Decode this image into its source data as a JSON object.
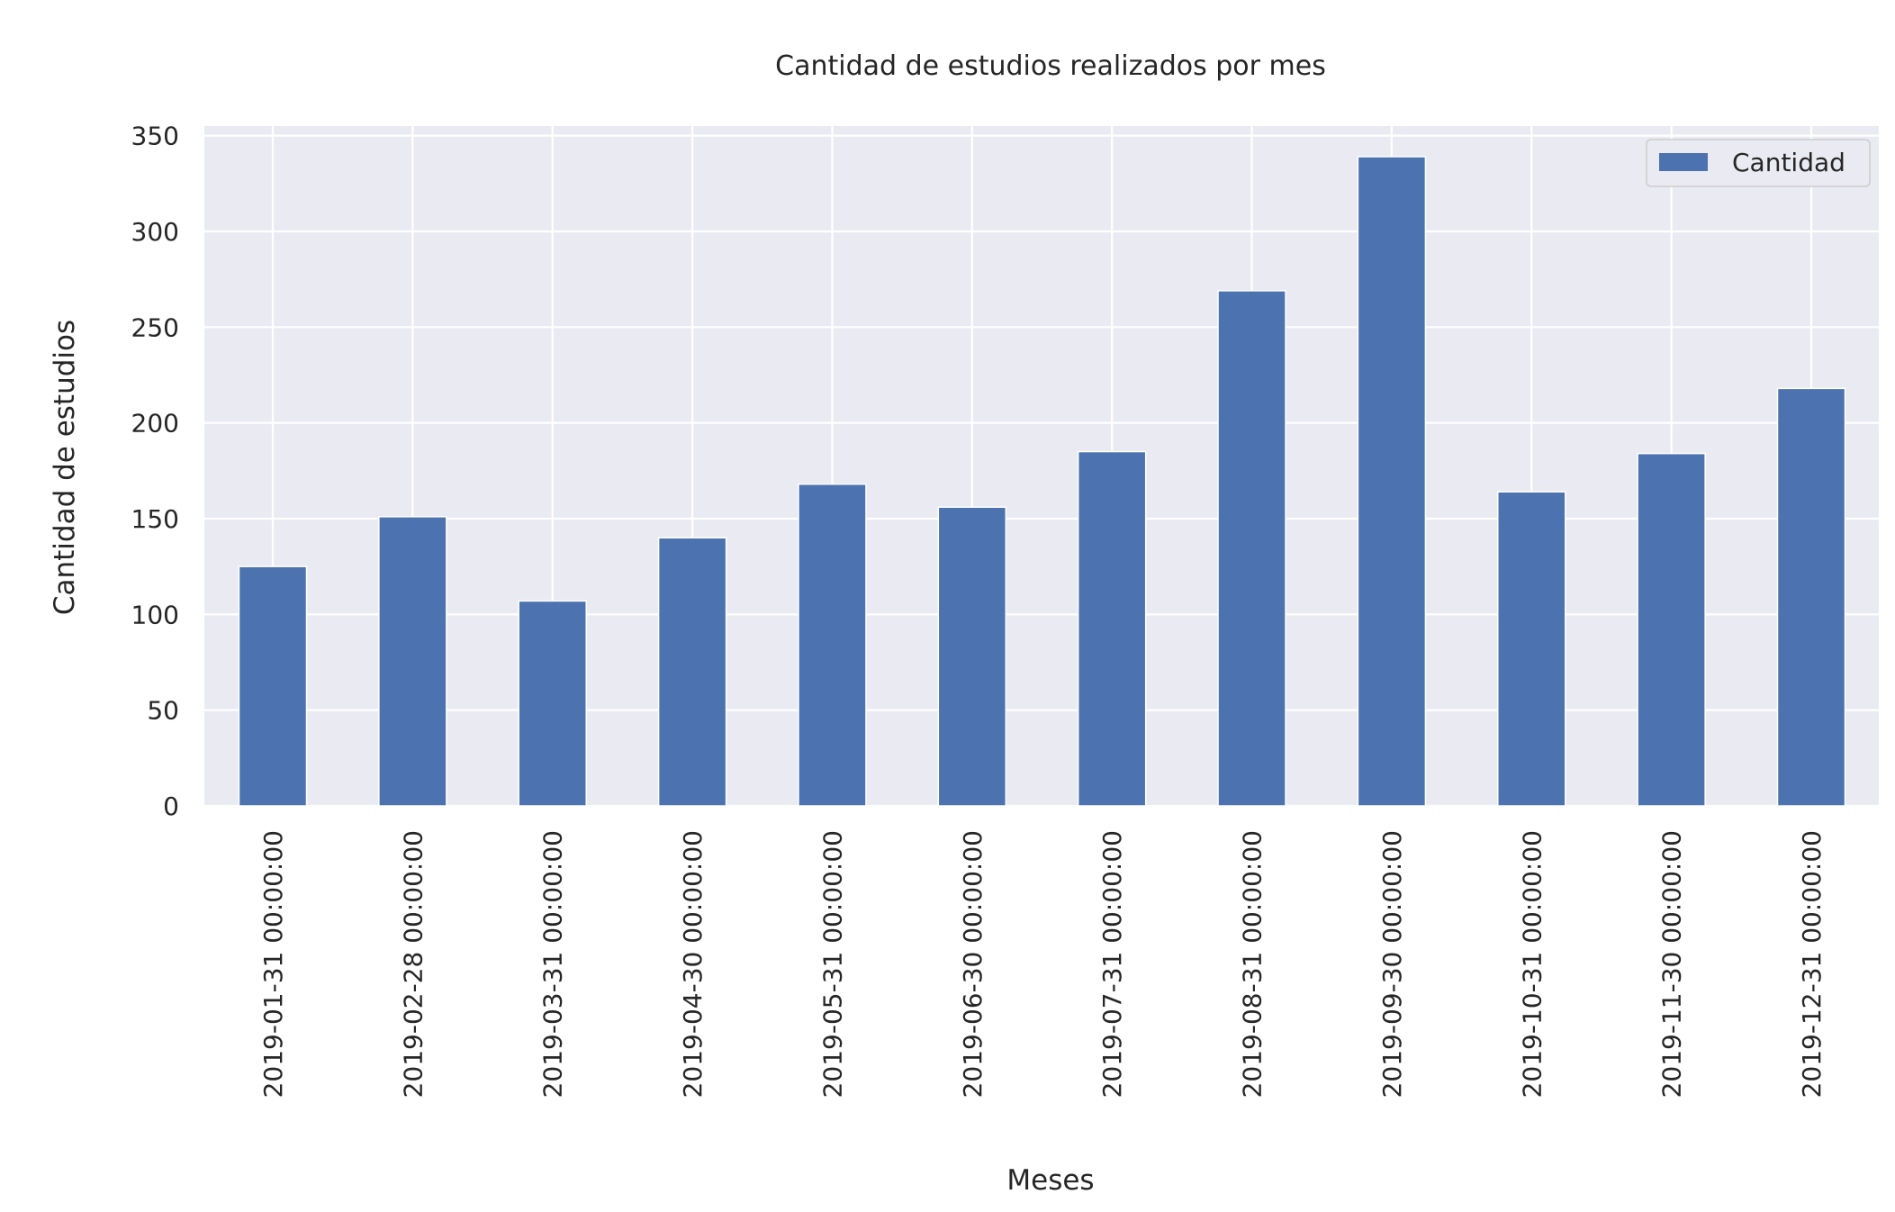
{
  "chart_data": {
    "type": "bar",
    "title": "Cantidad de estudios realizados por mes",
    "xlabel": "Meses",
    "ylabel": "Cantidad de estudios",
    "categories": [
      "2019-01-31 00:00:00",
      "2019-02-28 00:00:00",
      "2019-03-31 00:00:00",
      "2019-04-30 00:00:00",
      "2019-05-31 00:00:00",
      "2019-06-30 00:00:00",
      "2019-07-31 00:00:00",
      "2019-08-31 00:00:00",
      "2019-09-30 00:00:00",
      "2019-10-31 00:00:00",
      "2019-11-30 00:00:00",
      "2019-12-31 00:00:00"
    ],
    "series": [
      {
        "name": "Cantidad",
        "values": [
          125,
          151,
          107,
          140,
          168,
          156,
          185,
          269,
          339,
          164,
          184,
          218
        ]
      }
    ],
    "ylim": [
      0,
      355
    ],
    "yticks": [
      "0",
      "50",
      "100",
      "150",
      "200",
      "250",
      "300",
      "350"
    ],
    "grid": true,
    "legend_position": "top-right",
    "colors": {
      "bar": "#4c72b0",
      "plot_background": "#eaeaf2",
      "grid": "#ffffff"
    }
  }
}
